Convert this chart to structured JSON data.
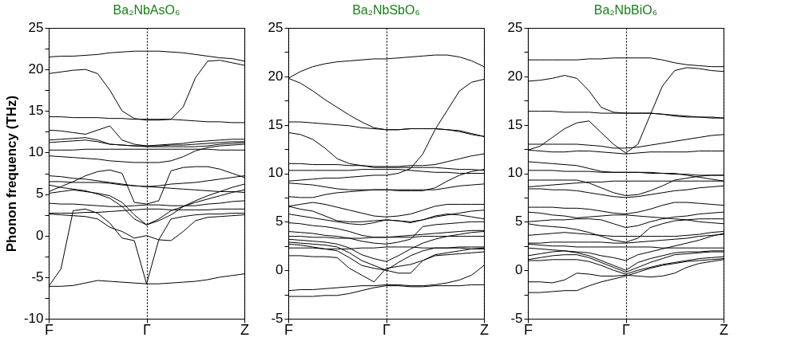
{
  "chart_data": [
    {
      "type": "line",
      "title": "Ba₂NbAsO₆",
      "ylabel": "Phonon frequency (THz)",
      "categories": [
        "F",
        null,
        null,
        null,
        null,
        null,
        null,
        null,
        "Γ",
        null,
        null,
        null,
        null,
        null,
        null,
        null,
        "Z"
      ],
      "ylim": [
        -10,
        25
      ],
      "yticks": [
        -10,
        {
          "value": -7.5,
          "label": null
        },
        -5,
        {
          "value": -2.5,
          "label": null
        },
        0,
        {
          "value": 2.5,
          "label": null
        },
        5,
        {
          "value": 7.5,
          "label": null
        },
        10,
        {
          "value": 12.5,
          "label": null
        },
        15,
        {
          "value": 17.5,
          "label": null
        },
        20,
        {
          "value": 22.5,
          "label": null
        },
        25
      ],
      "grid": "x",
      "legend": false,
      "marker": "none",
      "line_style": "solid",
      "series": [
        {
          "color": "#000000",
          "values": [
            21.5,
            21.6,
            21.6,
            21.7,
            21.8,
            22.0,
            22.1,
            22.2,
            22.2,
            22.2,
            22.1,
            22.0,
            21.8,
            21.6,
            21.4,
            21.3,
            21.0
          ]
        },
        {
          "color": "#000000",
          "values": [
            19.5,
            19.7,
            19.9,
            20.0,
            19.5,
            17.5,
            15.0,
            14.1,
            13.9,
            13.9,
            14.0,
            13.9,
            13.8,
            13.7,
            13.7,
            13.6,
            13.6
          ]
        },
        {
          "color": "#000000",
          "values": [
            14.3,
            14.3,
            14.2,
            14.2,
            14.2,
            14.1,
            14.1,
            14.0,
            14.0,
            14.0,
            14.0,
            15.5,
            19.0,
            21.0,
            21.1,
            20.8,
            20.5
          ]
        },
        {
          "color": "#000000",
          "values": [
            12.7,
            12.6,
            12.4,
            12.2,
            12.7,
            13.2,
            11.5,
            11.0,
            10.8,
            10.9,
            11.0,
            11.1,
            11.3,
            11.4,
            11.5,
            11.6,
            11.6
          ]
        },
        {
          "color": "#000000",
          "values": [
            11.5,
            11.6,
            11.7,
            11.8,
            11.5,
            11.0,
            10.9,
            10.8,
            10.8,
            10.8,
            10.9,
            10.9,
            11.0,
            11.1,
            11.2,
            11.3,
            11.3
          ]
        },
        {
          "color": "#000000",
          "values": [
            11.2,
            11.3,
            11.4,
            11.5,
            11.3,
            11.0,
            10.9,
            10.8,
            10.7,
            10.7,
            10.7,
            10.7,
            10.7,
            10.8,
            11.0,
            11.1,
            11.2
          ]
        },
        {
          "color": "#000000",
          "values": [
            10.3,
            10.3,
            10.3,
            10.4,
            10.4,
            10.4,
            10.4,
            10.4,
            10.4,
            10.4,
            10.4,
            10.4,
            10.4,
            10.4,
            10.3,
            10.3,
            10.3
          ]
        },
        {
          "color": "#000000",
          "values": [
            9.6,
            9.5,
            9.4,
            9.3,
            9.2,
            9.0,
            8.9,
            8.8,
            8.8,
            8.8,
            9.0,
            9.5,
            10.2,
            10.6,
            10.8,
            10.9,
            11.0
          ]
        },
        {
          "color": "#000000",
          "values": [
            5.3,
            5.9,
            6.5,
            7.2,
            7.7,
            7.9,
            7.5,
            4.0,
            3.8,
            4.2,
            7.8,
            8.2,
            8.3,
            8.3,
            8.0,
            7.5,
            7.0
          ]
        },
        {
          "color": "#000000",
          "values": [
            7.2,
            7.1,
            6.9,
            6.8,
            6.6,
            6.4,
            6.2,
            6.0,
            5.9,
            6.0,
            6.2,
            6.3,
            6.4,
            6.6,
            6.8,
            7.0,
            7.2
          ]
        },
        {
          "color": "#000000",
          "values": [
            6.5,
            6.5,
            6.4,
            6.4,
            6.4,
            6.3,
            6.1,
            6.0,
            5.9,
            5.8,
            5.7,
            5.6,
            5.5,
            5.4,
            5.3,
            5.3,
            5.2
          ]
        },
        {
          "color": "#000000",
          "values": [
            6.1,
            5.8,
            5.6,
            5.4,
            5.0,
            4.5,
            3.5,
            2.0,
            1.3,
            2.0,
            3.0,
            3.5,
            4.0,
            4.4,
            4.8,
            5.2,
            5.5
          ]
        },
        {
          "color": "#000000",
          "values": [
            5.1,
            5.3,
            5.5,
            5.3,
            5.1,
            4.8,
            4.0,
            2.5,
            1.3,
            1.8,
            2.5,
            3.5,
            4.2,
            4.8,
            5.3,
            5.8,
            6.2
          ]
        },
        {
          "color": "#000000",
          "values": [
            3.9,
            3.8,
            3.8,
            3.7,
            3.6,
            3.5,
            3.5,
            3.6,
            3.7,
            3.7,
            3.6,
            3.6,
            3.6,
            3.8,
            3.9,
            4.1,
            4.2
          ]
        },
        {
          "color": "#000000",
          "values": [
            2.7,
            2.7,
            2.7,
            2.8,
            2.8,
            2.9,
            3.0,
            3.1,
            3.2,
            3.2,
            3.1,
            3.1,
            3.1,
            3.1,
            3.2,
            3.2,
            3.2
          ]
        },
        {
          "color": "#000000",
          "values": [
            2.6,
            2.5,
            2.4,
            2.3,
            2.0,
            1.0,
            0.5,
            -0.3,
            0.0,
            -0.5,
            -0.6,
            0.5,
            1.8,
            2.2,
            2.3,
            2.4,
            2.5
          ]
        },
        {
          "color": "#000000",
          "values": [
            -6.1,
            -4.0,
            3.0,
            3.2,
            2.7,
            1.5,
            -0.3,
            -0.6,
            -5.8,
            -0.5,
            2.0,
            2.3,
            2.5,
            2.6,
            2.6,
            2.7,
            2.7
          ]
        },
        {
          "color": "#000000",
          "values": [
            -6.1,
            -6.1,
            -6.0,
            -5.7,
            -5.4,
            -5.5,
            -5.6,
            -5.7,
            -5.8,
            -5.8,
            -5.7,
            -5.6,
            -5.5,
            -5.3,
            -5.0,
            -4.8,
            -4.6
          ]
        }
      ]
    },
    {
      "type": "line",
      "title": "Ba₂NbSbO₆",
      "categories": [
        "F",
        null,
        null,
        null,
        null,
        null,
        null,
        null,
        "Γ",
        null,
        null,
        null,
        null,
        null,
        null,
        null,
        "Z"
      ],
      "ylim": [
        -5,
        25
      ],
      "yticks": [
        -5,
        {
          "value": -2.5,
          "label": null
        },
        0,
        {
          "value": 2.5,
          "label": null
        },
        5,
        {
          "value": 7.5,
          "label": null
        },
        10,
        {
          "value": 12.5,
          "label": null
        },
        15,
        {
          "value": 17.5,
          "label": null
        },
        20,
        {
          "value": 22.5,
          "label": null
        },
        25
      ],
      "grid": "x",
      "legend": false,
      "marker": "none",
      "line_style": "solid",
      "series": [
        {
          "color": "#000000",
          "values": [
            19.8,
            20.5,
            21.0,
            21.3,
            21.5,
            21.6,
            21.7,
            21.8,
            21.8,
            21.9,
            22.0,
            22.1,
            22.2,
            22.2,
            22.0,
            21.6,
            21.0
          ]
        },
        {
          "color": "#000000",
          "values": [
            19.8,
            19.3,
            18.5,
            17.6,
            16.8,
            16.0,
            15.3,
            14.7,
            14.5,
            14.5,
            14.6,
            14.6,
            14.6,
            14.5,
            14.3,
            14.0,
            13.8
          ]
        },
        {
          "color": "#000000",
          "values": [
            15.3,
            15.3,
            15.2,
            15.1,
            15.0,
            14.9,
            14.7,
            14.6,
            14.5,
            14.5,
            14.6,
            14.6,
            14.6,
            14.5,
            14.4,
            14.1,
            13.8
          ]
        },
        {
          "color": "#000000",
          "values": [
            14.2,
            14.0,
            13.5,
            12.6,
            11.5,
            11.0,
            10.8,
            10.6,
            10.6,
            10.6,
            10.6,
            10.6,
            10.6,
            10.5,
            10.4,
            10.4,
            10.3
          ]
        },
        {
          "color": "#000000",
          "values": [
            11.0,
            11.0,
            10.9,
            10.9,
            10.9,
            10.8,
            10.8,
            10.7,
            10.7,
            10.7,
            10.8,
            10.8,
            10.9,
            11.2,
            11.5,
            11.8,
            12.0
          ]
        },
        {
          "color": "#000000",
          "values": [
            10.3,
            10.3,
            10.3,
            10.3,
            10.3,
            10.3,
            10.4,
            10.4,
            10.4,
            10.4,
            10.3,
            10.2,
            10.1,
            10.1,
            10.0,
            10.0,
            10.0
          ]
        },
        {
          "color": "#000000",
          "values": [
            9.2,
            9.3,
            9.4,
            9.5,
            9.5,
            9.6,
            9.7,
            9.8,
            9.8,
            10.0,
            10.5,
            12.0,
            14.5,
            16.5,
            18.5,
            19.4,
            19.7
          ]
        },
        {
          "color": "#000000",
          "values": [
            9.0,
            8.9,
            8.8,
            8.6,
            8.4,
            8.3,
            8.3,
            8.3,
            8.3,
            8.3,
            8.3,
            8.3,
            8.3,
            8.5,
            8.7,
            8.8,
            8.9
          ]
        },
        {
          "color": "#000000",
          "values": [
            7.6,
            7.5,
            7.5,
            7.8,
            8.0,
            8.1,
            8.2,
            8.3,
            8.3,
            8.2,
            8.2,
            8.2,
            8.5,
            9.2,
            9.8,
            10.2,
            10.4
          ]
        },
        {
          "color": "#000000",
          "values": [
            6.6,
            6.8,
            7.0,
            6.8,
            6.5,
            6.2,
            5.9,
            5.6,
            5.5,
            5.6,
            5.8,
            6.2,
            6.6,
            6.8,
            6.8,
            6.8,
            6.8
          ]
        },
        {
          "color": "#000000",
          "values": [
            6.6,
            6.3,
            6.1,
            5.6,
            5.1,
            5.0,
            5.0,
            5.1,
            5.2,
            5.1,
            4.9,
            5.2,
            5.6,
            5.8,
            5.7,
            5.5,
            5.3
          ]
        },
        {
          "color": "#000000",
          "values": [
            5.8,
            5.6,
            5.4,
            5.2,
            5.0,
            4.8,
            4.7,
            4.9,
            5.2,
            5.1,
            5.0,
            5.2,
            5.5,
            5.7,
            5.9,
            6.1,
            6.2
          ]
        },
        {
          "color": "#000000",
          "values": [
            4.9,
            4.8,
            4.6,
            4.5,
            4.3,
            4.0,
            3.6,
            3.4,
            3.4,
            3.4,
            3.4,
            3.5,
            3.5,
            3.5,
            3.5,
            3.5,
            3.5
          ]
        },
        {
          "color": "#000000",
          "values": [
            4.0,
            3.9,
            3.8,
            3.6,
            3.5,
            3.3,
            3.0,
            2.8,
            2.7,
            2.9,
            3.2,
            4.5,
            4.7,
            4.8,
            4.9,
            5.0,
            5.0
          ]
        },
        {
          "color": "#000000",
          "values": [
            3.5,
            3.5,
            3.4,
            3.4,
            3.3,
            3.3,
            3.3,
            3.4,
            3.4,
            3.5,
            3.6,
            3.7,
            3.8,
            3.9,
            4.0,
            4.1,
            4.1
          ]
        },
        {
          "color": "#000000",
          "values": [
            3.2,
            3.1,
            3.0,
            2.9,
            2.7,
            2.3,
            1.6,
            1.2,
            0.9,
            1.5,
            2.2,
            2.8,
            3.2,
            3.5,
            3.7,
            3.9,
            4.0
          ]
        },
        {
          "color": "#000000",
          "values": [
            2.9,
            2.8,
            2.7,
            2.6,
            2.4,
            1.8,
            1.0,
            0.5,
            0.0,
            0.8,
            1.5,
            2.0,
            2.3,
            2.3,
            2.4,
            2.4,
            2.4
          ]
        },
        {
          "color": "#000000",
          "values": [
            2.7,
            2.6,
            2.4,
            2.2,
            2.0,
            1.3,
            0.5,
            0.2,
            0.0,
            -0.3,
            -0.3,
            1.0,
            1.6,
            1.8,
            2.0,
            2.2,
            2.3
          ]
        },
        {
          "color": "#000000",
          "values": [
            2.3,
            2.3,
            2.3,
            2.2,
            2.2,
            2.2,
            2.3,
            2.3,
            2.4,
            2.4,
            2.4,
            2.3,
            2.3,
            2.3,
            2.3,
            2.2,
            2.2
          ]
        },
        {
          "color": "#000000",
          "values": [
            1.5,
            1.5,
            1.4,
            1.4,
            1.3,
            0.2,
            -0.5,
            -1.2,
            0.2,
            0.4,
            0.6,
            1.0,
            1.5,
            1.6,
            1.7,
            1.8,
            1.9
          ]
        },
        {
          "color": "#000000",
          "values": [
            -2.1,
            -2.0,
            -2.0,
            -1.9,
            -1.8,
            -1.7,
            -1.6,
            -1.6,
            -1.5,
            -1.5,
            -1.6,
            -1.6,
            -1.5,
            -1.3,
            -1.0,
            -0.5,
            0.5
          ]
        },
        {
          "color": "#000000",
          "values": [
            -2.7,
            -2.7,
            -2.7,
            -2.6,
            -2.6,
            -2.4,
            -2.1,
            -1.8,
            -1.6,
            -1.6,
            -1.7,
            -1.7,
            -1.6,
            -1.6,
            -1.6,
            -1.5,
            -1.5
          ]
        }
      ]
    },
    {
      "type": "line",
      "title": "Ba₂NbBiO₆",
      "categories": [
        "F",
        null,
        null,
        null,
        null,
        null,
        null,
        null,
        "Γ",
        null,
        null,
        null,
        null,
        null,
        null,
        null,
        "Z"
      ],
      "ylim": [
        -5,
        25
      ],
      "yticks": [
        -5,
        {
          "value": -2.5,
          "label": null
        },
        0,
        {
          "value": 2.5,
          "label": null
        },
        5,
        {
          "value": 7.5,
          "label": null
        },
        10,
        {
          "value": 12.5,
          "label": null
        },
        15,
        {
          "value": 17.5,
          "label": null
        },
        20,
        {
          "value": 22.5,
          "label": null
        },
        25
      ],
      "grid": "x",
      "legend": false,
      "marker": "none",
      "line_style": "solid",
      "series": [
        {
          "color": "#000000",
          "values": [
            21.7,
            21.7,
            21.7,
            21.7,
            21.7,
            21.8,
            21.8,
            21.9,
            21.9,
            21.9,
            21.9,
            21.7,
            21.4,
            21.2,
            21.1,
            21.0,
            21.0
          ]
        },
        {
          "color": "#000000",
          "values": [
            19.5,
            19.6,
            19.8,
            20.1,
            19.8,
            18.5,
            16.8,
            16.3,
            16.2,
            16.2,
            16.2,
            16.1,
            15.9,
            15.8,
            15.8,
            15.7,
            15.7
          ]
        },
        {
          "color": "#000000",
          "values": [
            16.4,
            16.4,
            16.4,
            16.3,
            16.3,
            16.3,
            16.2,
            16.2,
            16.2,
            16.2,
            16.2,
            16.1,
            16.0,
            15.9,
            15.8,
            15.8,
            15.7
          ]
        },
        {
          "color": "#000000",
          "values": [
            12.4,
            12.8,
            13.7,
            14.6,
            15.2,
            15.4,
            14.2,
            13.0,
            12.1,
            13.0,
            16.0,
            19.0,
            20.6,
            20.9,
            20.8,
            20.6,
            20.5
          ]
        },
        {
          "color": "#000000",
          "values": [
            13.0,
            13.0,
            13.0,
            13.0,
            13.0,
            12.9,
            12.8,
            12.6,
            12.6,
            12.7,
            12.9,
            13.1,
            13.3,
            13.5,
            13.7,
            13.9,
            14.0
          ]
        },
        {
          "color": "#000000",
          "values": [
            12.4,
            12.3,
            12.2,
            12.2,
            12.3,
            12.3,
            12.2,
            12.1,
            12.0,
            12.1,
            12.2,
            12.2,
            12.2,
            12.2,
            12.3,
            12.3,
            12.3
          ]
        },
        {
          "color": "#000000",
          "values": [
            11.2,
            11.1,
            11.0,
            10.9,
            10.8,
            10.5,
            10.2,
            10.1,
            10.1,
            10.1,
            10.0,
            10.0,
            9.9,
            9.9,
            9.8,
            9.8,
            9.8
          ]
        },
        {
          "color": "#000000",
          "values": [
            10.3,
            10.3,
            10.3,
            10.2,
            10.2,
            10.2,
            10.1,
            10.1,
            10.1,
            10.1,
            10.1,
            10.0,
            10.0,
            9.8,
            9.6,
            9.4,
            9.2
          ]
        },
        {
          "color": "#000000",
          "values": [
            9.3,
            9.3,
            9.3,
            9.3,
            9.3,
            9.0,
            8.5,
            8.0,
            7.7,
            7.8,
            8.2,
            8.7,
            9.3,
            9.5,
            9.7,
            9.8,
            9.8
          ]
        },
        {
          "color": "#000000",
          "values": [
            8.6,
            8.7,
            8.8,
            8.9,
            9.0,
            9.1,
            9.1,
            9.2,
            9.2,
            9.2,
            9.2,
            9.2,
            9.2,
            9.2,
            9.2,
            9.2,
            9.2
          ]
        },
        {
          "color": "#000000",
          "values": [
            8.4,
            8.4,
            8.3,
            8.3,
            8.2,
            8.0,
            7.8,
            7.6,
            7.5,
            7.6,
            7.8,
            8.0,
            8.2,
            8.3,
            8.5,
            8.6,
            8.7
          ]
        },
        {
          "color": "#000000",
          "values": [
            6.5,
            6.5,
            6.5,
            6.4,
            6.4,
            6.3,
            6.1,
            5.9,
            5.8,
            6.0,
            6.3,
            6.7,
            7.0,
            7.0,
            6.9,
            6.8,
            6.7
          ]
        },
        {
          "color": "#000000",
          "values": [
            6.0,
            5.9,
            5.7,
            5.6,
            5.4,
            5.5,
            5.6,
            5.7,
            5.7,
            5.6,
            5.5,
            5.4,
            5.3,
            5.2,
            5.0,
            4.9,
            4.8
          ]
        },
        {
          "color": "#000000",
          "values": [
            5.0,
            5.1,
            5.2,
            5.2,
            5.3,
            5.3,
            5.2,
            4.8,
            4.4,
            4.6,
            5.0,
            5.3,
            5.5,
            5.6,
            5.8,
            5.9,
            6.0
          ]
        },
        {
          "color": "#000000",
          "values": [
            4.8,
            4.6,
            4.5,
            4.4,
            4.2,
            3.9,
            3.5,
            3.1,
            2.9,
            3.3,
            4.4,
            4.8,
            5.1,
            5.2,
            5.3,
            5.3,
            5.3
          ]
        },
        {
          "color": "#000000",
          "values": [
            3.6,
            3.7,
            3.8,
            3.9,
            3.8,
            3.7,
            3.6,
            3.5,
            3.5,
            3.5,
            3.5,
            3.5,
            3.5,
            3.6,
            3.7,
            3.9,
            4.0
          ]
        },
        {
          "color": "#000000",
          "values": [
            2.8,
            2.8,
            2.9,
            2.9,
            2.9,
            2.9,
            2.9,
            2.8,
            2.8,
            2.9,
            3.0,
            3.1,
            3.2,
            3.3,
            3.5,
            3.6,
            3.7
          ]
        },
        {
          "color": "#000000",
          "values": [
            2.7,
            2.6,
            2.5,
            2.5,
            2.4,
            2.4,
            2.4,
            2.4,
            2.4,
            2.4,
            2.4,
            2.3,
            2.3,
            2.3,
            2.3,
            2.3,
            2.3
          ]
        },
        {
          "color": "#000000",
          "values": [
            2.3,
            2.2,
            2.1,
            2.0,
            1.9,
            1.8,
            1.5,
            1.3,
            1.0,
            1.6,
            1.9,
            2.2,
            2.5,
            2.8,
            3.1,
            3.5,
            3.8
          ]
        },
        {
          "color": "#000000",
          "values": [
            1.5,
            1.7,
            1.9,
            2.0,
            1.8,
            1.5,
            1.0,
            0.5,
            0.0,
            0.8,
            1.2,
            1.5,
            1.8,
            1.9,
            1.9,
            2.0,
            2.0
          ]
        },
        {
          "color": "#000000",
          "values": [
            1.1,
            1.3,
            1.5,
            1.6,
            1.6,
            1.3,
            0.8,
            0.3,
            -0.2,
            0.3,
            0.8,
            1.2,
            1.6,
            1.7,
            1.8,
            1.9,
            1.9
          ]
        },
        {
          "color": "#000000",
          "values": [
            1.0,
            1.0,
            1.1,
            1.1,
            1.1,
            0.9,
            0.5,
            0.0,
            -0.4,
            0.0,
            0.3,
            0.6,
            0.8,
            1.0,
            1.2,
            1.3,
            1.4
          ]
        },
        {
          "color": "#000000",
          "values": [
            -1.2,
            -1.2,
            -1.3,
            -1.0,
            -0.3,
            -0.4,
            -0.6,
            -0.6,
            -0.5,
            -0.6,
            -0.7,
            -0.6,
            -0.3,
            0.3,
            0.7,
            0.9,
            1.1
          ]
        },
        {
          "color": "#000000",
          "values": [
            -2.3,
            -2.3,
            -2.2,
            -2.1,
            -2.1,
            -1.6,
            -1.2,
            -0.9,
            -0.6,
            -0.2,
            0.2,
            0.5,
            0.7,
            0.9,
            1.0,
            1.1,
            1.2
          ]
        }
      ]
    }
  ]
}
